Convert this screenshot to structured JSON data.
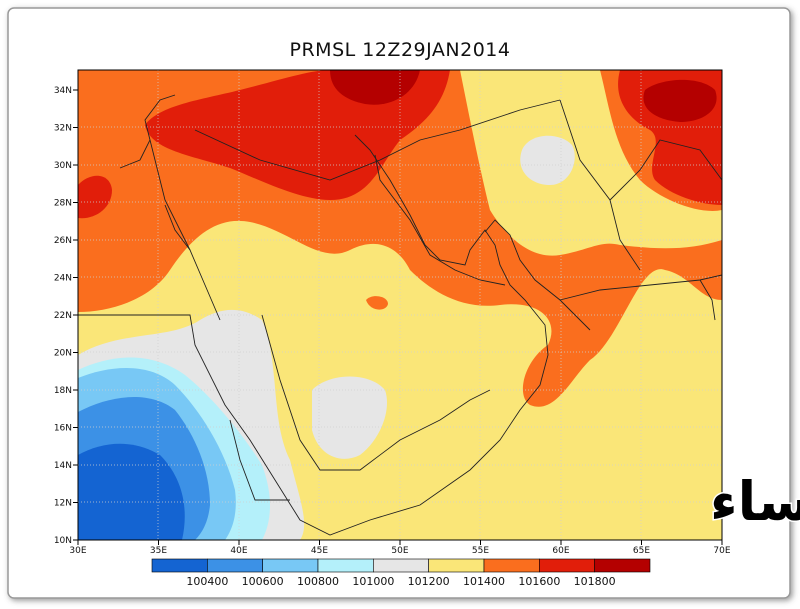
{
  "title": "PRMSL 12Z29JAN2014",
  "lat_labels": [
    "34N",
    "32N",
    "30N",
    "28N",
    "26N",
    "24N",
    "22N",
    "20N",
    "18N",
    "16N",
    "14N",
    "12N",
    "10N"
  ],
  "lon_labels": [
    "30E",
    "35E",
    "40E",
    "45E",
    "50E",
    "55E",
    "60E",
    "65E",
    "70E"
  ],
  "colorbar": {
    "labels": [
      "100400",
      "100600",
      "100800",
      "101000",
      "101200",
      "101400",
      "101600",
      "101800"
    ],
    "colors": [
      "#1464d2",
      "#3c91e6",
      "#78c8f5",
      "#b4f0fa",
      "#e6e6e6",
      "#fae678",
      "#fa6e1e",
      "#e11e0a",
      "#b40000"
    ]
  },
  "watermark": "براري الاحساء"
}
